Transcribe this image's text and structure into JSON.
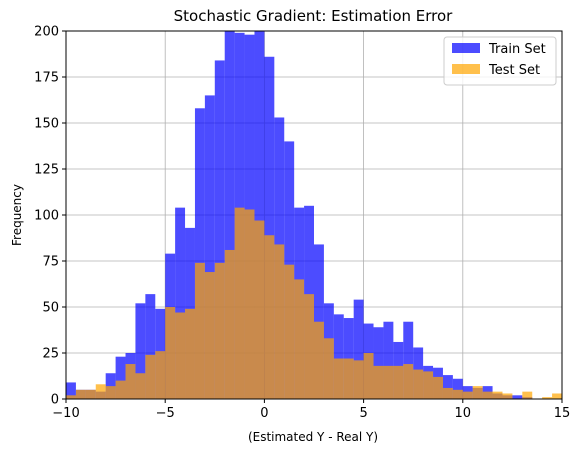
{
  "chart_data": {
    "type": "bar",
    "title": "Stochastic Gradient: Estimation Error",
    "xlabel": "(Estimated Y - Real Y)",
    "ylabel": "Frequency",
    "xlim": [
      -10,
      15
    ],
    "ylim": [
      0,
      200
    ],
    "xticks": [
      -10,
      -5,
      0,
      5,
      10,
      15
    ],
    "xtick_labels": [
      "−10",
      "−5",
      "0",
      "5",
      "10",
      "15"
    ],
    "yticks": [
      0,
      25,
      50,
      75,
      100,
      125,
      150,
      175,
      200
    ],
    "grid": true,
    "legend_position": "top-right",
    "bin_width": 0.5,
    "bin_start": -10,
    "series": [
      {
        "name": "Train Set",
        "color": "#0000ff",
        "opacity": 0.7,
        "values": [
          9,
          5,
          5,
          4,
          14,
          23,
          25,
          52,
          57,
          49,
          79,
          104,
          93,
          158,
          165,
          184,
          200,
          199,
          198,
          200,
          186,
          153,
          140,
          104,
          105,
          84,
          52,
          46,
          44,
          54,
          41,
          39,
          42,
          31,
          42,
          28,
          18,
          17,
          13,
          11,
          7,
          6,
          7,
          3,
          2,
          2,
          1,
          0,
          0,
          0
        ]
      },
      {
        "name": "Test Set",
        "color": "#ffa500",
        "opacity": 0.7,
        "values": [
          2,
          5,
          5,
          8,
          7,
          10,
          19,
          14,
          24,
          26,
          50,
          47,
          49,
          74,
          69,
          74,
          81,
          104,
          103,
          97,
          89,
          84,
          73,
          65,
          57,
          42,
          33,
          22,
          22,
          21,
          25,
          18,
          18,
          18,
          19,
          16,
          15,
          12,
          6,
          5,
          4,
          7,
          4,
          4,
          3,
          0,
          4,
          0,
          1,
          3
        ]
      }
    ]
  }
}
